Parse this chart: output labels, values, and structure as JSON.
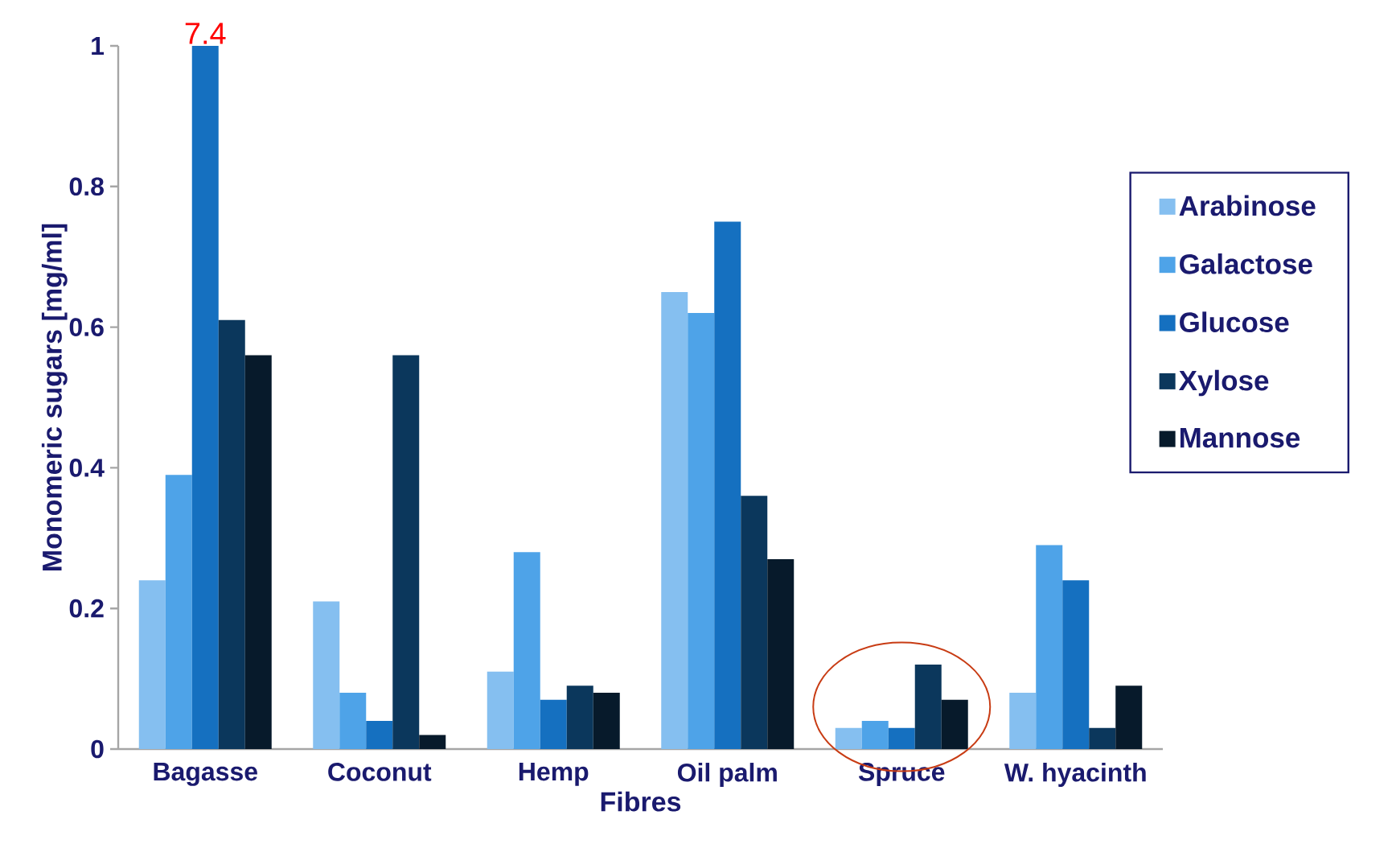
{
  "chart_data": {
    "type": "bar",
    "xlabel": "Fibres",
    "ylabel": "Monomeric sugars [mg/ml]",
    "categories": [
      "Bagasse",
      "Coconut",
      "Hemp",
      "Oil palm",
      "Spruce",
      "W. hyacinth"
    ],
    "series": [
      {
        "name": "Arabinose",
        "color": "#85bff0",
        "values": [
          0.24,
          0.21,
          0.11,
          0.65,
          0.03,
          0.08
        ]
      },
      {
        "name": "Galactose",
        "color": "#4ea3e8",
        "values": [
          0.39,
          0.08,
          0.28,
          0.62,
          0.04,
          0.29
        ]
      },
      {
        "name": "Glucose",
        "color": "#1570c0",
        "values": [
          1.0,
          0.04,
          0.07,
          0.75,
          0.03,
          0.24
        ]
      },
      {
        "name": "Xylose",
        "color": "#0b375c",
        "values": [
          0.61,
          0.56,
          0.09,
          0.36,
          0.12,
          0.03
        ]
      },
      {
        "name": "Mannose",
        "color": "#071a2b",
        "values": [
          0.56,
          0.02,
          0.08,
          0.27,
          0.07,
          0.09
        ]
      }
    ],
    "ylim": [
      0,
      1
    ],
    "yticks": [
      0,
      0.2,
      0.4,
      0.6,
      0.8,
      1
    ],
    "annotations": [
      {
        "text": "7.4",
        "x": "Bagasse",
        "y": 1
      }
    ],
    "legend": "right",
    "grid": false
  }
}
